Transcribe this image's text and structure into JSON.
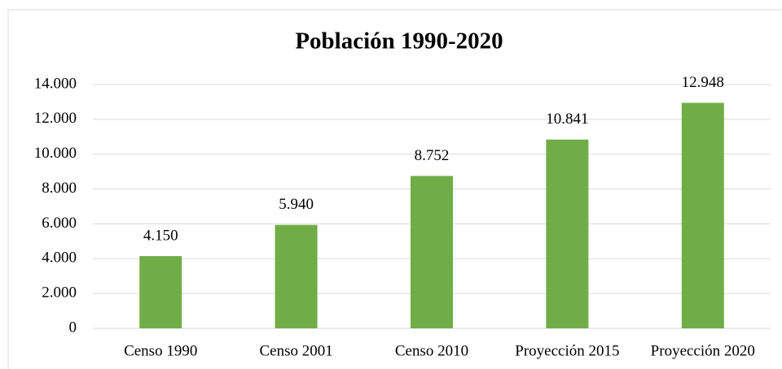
{
  "chart_data": {
    "type": "bar",
    "title": "Población 1990-2020",
    "categories": [
      "Censo 1990",
      "Censo 2001",
      "Censo 2010",
      "Proyección 2015",
      "Proyección 2020"
    ],
    "values": [
      4150,
      5940,
      8752,
      10841,
      12948
    ],
    "value_labels": [
      "4.150",
      "5.940",
      "8.752",
      "10.841",
      "12.948"
    ],
    "color": "#70ad47",
    "ylim": [
      0,
      14000
    ],
    "yticks": [
      0,
      {
        "value": 2000,
        "label": "2.000"
      },
      {
        "value": 4000,
        "label": "4.000"
      },
      {
        "value": 6000,
        "label": "6.000"
      },
      {
        "value": 8000,
        "label": "8.000"
      },
      {
        "value": 10000,
        "label": "10.000"
      },
      {
        "value": 12000,
        "label": "12.000"
      },
      {
        "value": 14000,
        "label": "14.000"
      }
    ],
    "grid": true
  }
}
